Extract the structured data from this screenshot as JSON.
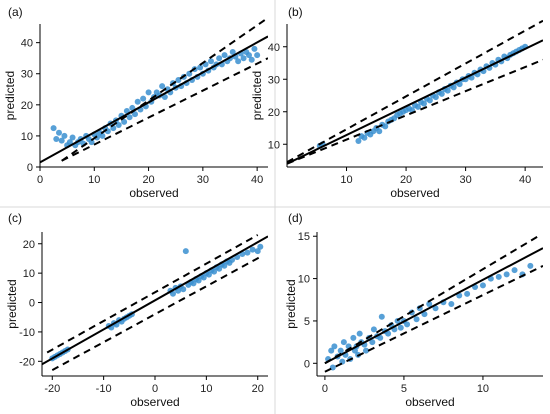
{
  "figure": {
    "background": "#ffffff",
    "divider_color": "#d9d9d9",
    "point_color": "#3a8fd0",
    "line_color": "#000000"
  },
  "chart_data": [
    {
      "type": "scatter",
      "panel_label": "(a)",
      "xlabel": "observed",
      "ylabel": "predicted",
      "xlim": [
        0,
        42
      ],
      "ylim": [
        0,
        46
      ],
      "xticks": [
        0,
        10,
        20,
        30,
        40
      ],
      "yticks": [
        0,
        10,
        20,
        30,
        40
      ],
      "fit_line": [
        [
          0,
          1.5
        ],
        [
          42,
          42
        ]
      ],
      "band_upper": [
        [
          4,
          2
        ],
        [
          42,
          48
        ]
      ],
      "band_lower": [
        [
          4,
          2
        ],
        [
          42,
          35
        ]
      ],
      "points": [
        [
          2.5,
          12.5
        ],
        [
          3,
          9
        ],
        [
          3.5,
          11
        ],
        [
          4,
          8.5
        ],
        [
          4.5,
          10
        ],
        [
          5,
          7
        ],
        [
          5.5,
          8
        ],
        [
          6,
          9.5
        ],
        [
          6.5,
          7
        ],
        [
          7,
          8
        ],
        [
          7.5,
          9
        ],
        [
          8,
          7.5
        ],
        [
          8.5,
          10
        ],
        [
          9,
          9
        ],
        [
          9.5,
          8
        ],
        [
          10,
          10.5
        ],
        [
          10.5,
          9.5
        ],
        [
          11,
          11
        ],
        [
          11.5,
          10
        ],
        [
          12,
          12.5
        ],
        [
          12.5,
          11.5
        ],
        [
          13,
          14
        ],
        [
          13.5,
          12.5
        ],
        [
          14,
          15
        ],
        [
          14.5,
          13.5
        ],
        [
          15,
          16.5
        ],
        [
          15.5,
          14.5
        ],
        [
          16,
          18
        ],
        [
          16.5,
          16
        ],
        [
          17,
          19
        ],
        [
          17.5,
          17
        ],
        [
          18,
          21
        ],
        [
          18.5,
          18.5
        ],
        [
          19,
          22
        ],
        [
          19.5,
          19.5
        ],
        [
          20,
          24
        ],
        [
          20.5,
          21
        ],
        [
          21,
          22.5
        ],
        [
          21.5,
          24
        ],
        [
          22,
          23
        ],
        [
          22.5,
          26
        ],
        [
          23,
          22.5
        ],
        [
          23.5,
          25
        ],
        [
          24,
          24
        ],
        [
          24.5,
          27
        ],
        [
          25,
          25.5
        ],
        [
          25.5,
          28
        ],
        [
          26,
          26
        ],
        [
          26.5,
          29
        ],
        [
          27,
          27
        ],
        [
          27.5,
          30
        ],
        [
          28,
          28
        ],
        [
          28.5,
          31.5
        ],
        [
          29,
          29
        ],
        [
          29.5,
          32
        ],
        [
          30,
          30
        ],
        [
          30.5,
          33
        ],
        [
          31,
          31
        ],
        [
          31.5,
          34
        ],
        [
          32,
          32
        ],
        [
          32.5,
          33
        ],
        [
          33,
          35
        ],
        [
          33.5,
          33
        ],
        [
          34,
          36
        ],
        [
          34.5,
          34
        ],
        [
          35,
          35
        ],
        [
          35.5,
          37
        ],
        [
          36,
          35.5
        ],
        [
          36.5,
          34
        ],
        [
          37,
          36.5
        ],
        [
          37.5,
          35
        ],
        [
          38,
          37
        ],
        [
          38.5,
          36
        ],
        [
          39,
          34.5
        ],
        [
          39.5,
          38
        ],
        [
          40,
          36
        ]
      ]
    },
    {
      "type": "scatter",
      "panel_label": "(b)",
      "xlabel": "observed",
      "ylabel": "predicted",
      "xlim": [
        0,
        43
      ],
      "ylim": [
        3,
        47
      ],
      "xticks": [
        10,
        20,
        30,
        40
      ],
      "yticks": [
        10,
        20,
        30,
        40
      ],
      "fit_line": [
        [
          0,
          4
        ],
        [
          43,
          42
        ]
      ],
      "band_upper": [
        [
          0,
          4.5
        ],
        [
          43,
          48
        ]
      ],
      "band_lower": [
        [
          0,
          4
        ],
        [
          43,
          36
        ]
      ],
      "points": [
        [
          5.5,
          9.5
        ],
        [
          6,
          10
        ],
        [
          12,
          11
        ],
        [
          12.5,
          12.5
        ],
        [
          13,
          12
        ],
        [
          13.5,
          13.5
        ],
        [
          14,
          13
        ],
        [
          14.5,
          14
        ],
        [
          15,
          15
        ],
        [
          15.5,
          14
        ],
        [
          16,
          16
        ],
        [
          16.5,
          15.5
        ],
        [
          17,
          17
        ],
        [
          17.5,
          17.5
        ],
        [
          18,
          18
        ],
        [
          18.5,
          19
        ],
        [
          19,
          19.5
        ],
        [
          19.5,
          20
        ],
        [
          20,
          20.5
        ],
        [
          20.5,
          21
        ],
        [
          21,
          20.5
        ],
        [
          21.5,
          22
        ],
        [
          22,
          21.5
        ],
        [
          22.5,
          23
        ],
        [
          23,
          22.5
        ],
        [
          23.5,
          24
        ],
        [
          24,
          23.5
        ],
        [
          24.5,
          25
        ],
        [
          25,
          24.5
        ],
        [
          25.5,
          26
        ],
        [
          26,
          25.5
        ],
        [
          26.5,
          27
        ],
        [
          27,
          26.5
        ],
        [
          27.5,
          28
        ],
        [
          28,
          27.5
        ],
        [
          28.5,
          29
        ],
        [
          29,
          28.5
        ],
        [
          29.5,
          30
        ],
        [
          30,
          30
        ],
        [
          30.5,
          31
        ],
        [
          31,
          30.5
        ],
        [
          31.5,
          32
        ],
        [
          32,
          31.5
        ],
        [
          32.5,
          33
        ],
        [
          33,
          32.5
        ],
        [
          33.5,
          34
        ],
        [
          34,
          33.5
        ],
        [
          34.5,
          35
        ],
        [
          35,
          34.5
        ],
        [
          35.5,
          36
        ],
        [
          36,
          35.5
        ],
        [
          36.5,
          37
        ],
        [
          37,
          36.5
        ],
        [
          37.5,
          37.5
        ],
        [
          38,
          38
        ],
        [
          38.5,
          38.5
        ],
        [
          39,
          39
        ],
        [
          39.5,
          39.5
        ],
        [
          40,
          40
        ]
      ]
    },
    {
      "type": "scatter",
      "panel_label": "(c)",
      "xlabel": "observed",
      "ylabel": "predicted",
      "xlim": [
        -22,
        22
      ],
      "ylim": [
        -25,
        24
      ],
      "xticks": [
        -20,
        -10,
        0,
        10,
        20
      ],
      "yticks": [
        -20,
        -10,
        0,
        10,
        20
      ],
      "fit_line": [
        [
          -22,
          -21
        ],
        [
          22,
          22.5
        ]
      ],
      "band_upper": [
        [
          -21,
          -17
        ],
        [
          20,
          23
        ]
      ],
      "band_lower": [
        [
          -20,
          -23
        ],
        [
          21,
          16
        ]
      ],
      "points": [
        [
          -20,
          -19
        ],
        [
          -19.5,
          -18.5
        ],
        [
          -19,
          -18
        ],
        [
          -18.5,
          -17.5
        ],
        [
          -18,
          -17
        ],
        [
          -17.5,
          -16.5
        ],
        [
          -17,
          -16
        ],
        [
          -9,
          -8
        ],
        [
          -8.5,
          -8.5
        ],
        [
          -8,
          -7
        ],
        [
          -7.5,
          -7.5
        ],
        [
          -7,
          -6
        ],
        [
          -6.5,
          -6.5
        ],
        [
          -6,
          -5.5
        ],
        [
          -5.5,
          -5
        ],
        [
          -5,
          -4.5
        ],
        [
          -4.5,
          -4
        ],
        [
          3,
          4
        ],
        [
          3.5,
          3
        ],
        [
          4,
          5
        ],
        [
          4.5,
          4
        ],
        [
          5,
          5.5
        ],
        [
          5.5,
          4.5
        ],
        [
          6,
          17.5
        ],
        [
          6.5,
          6
        ],
        [
          7,
          7
        ],
        [
          7.5,
          6.5
        ],
        [
          8,
          8
        ],
        [
          8.5,
          7.5
        ],
        [
          9,
          9
        ],
        [
          9.5,
          8.5
        ],
        [
          10,
          10
        ],
        [
          10.5,
          9.5
        ],
        [
          11,
          11
        ],
        [
          11.5,
          10.5
        ],
        [
          12,
          12
        ],
        [
          12.5,
          11.5
        ],
        [
          13,
          13
        ],
        [
          13.5,
          12.5
        ],
        [
          14,
          14
        ],
        [
          14.5,
          13.5
        ],
        [
          15,
          14.5
        ],
        [
          16,
          15.5
        ],
        [
          17,
          16.5
        ],
        [
          18,
          17
        ],
        [
          19,
          18
        ],
        [
          20,
          17.5
        ],
        [
          20.5,
          19
        ]
      ]
    },
    {
      "type": "scatter",
      "panel_label": "(d)",
      "xlabel": "observed",
      "ylabel": "predicted",
      "xlim": [
        -0.5,
        13.8
      ],
      "ylim": [
        -1.5,
        15.5
      ],
      "xticks": [
        0,
        5,
        10
      ],
      "yticks": [
        0,
        5,
        10,
        15
      ],
      "fit_line": [
        [
          0,
          0
        ],
        [
          13.8,
          13.6
        ]
      ],
      "band_upper": [
        [
          0,
          0
        ],
        [
          13.5,
          15
        ]
      ],
      "band_lower": [
        [
          0,
          -1
        ],
        [
          13.8,
          11.5
        ]
      ],
      "points": [
        [
          0.2,
          0.5
        ],
        [
          0.4,
          1.5
        ],
        [
          0.5,
          -0.5
        ],
        [
          0.6,
          2
        ],
        [
          0.8,
          0.8
        ],
        [
          1,
          1.5
        ],
        [
          1.1,
          0.2
        ],
        [
          1.2,
          2.5
        ],
        [
          1.3,
          1
        ],
        [
          1.5,
          2
        ],
        [
          1.6,
          0.5
        ],
        [
          1.8,
          3
        ],
        [
          1.9,
          1.5
        ],
        [
          2,
          2
        ],
        [
          2.1,
          1
        ],
        [
          2.2,
          3.5
        ],
        [
          2.3,
          2.5
        ],
        [
          2.5,
          2.2
        ],
        [
          2.6,
          1.5
        ],
        [
          2.8,
          3
        ],
        [
          3,
          2.5
        ],
        [
          3.1,
          4
        ],
        [
          3.3,
          3.2
        ],
        [
          3.5,
          3
        ],
        [
          3.6,
          5.5
        ],
        [
          3.8,
          3.8
        ],
        [
          4,
          3.5
        ],
        [
          4.2,
          4.5
        ],
        [
          4.4,
          4
        ],
        [
          4.6,
          5
        ],
        [
          4.8,
          4.2
        ],
        [
          5,
          5
        ],
        [
          5.2,
          4.6
        ],
        [
          5.5,
          6
        ],
        [
          5.8,
          5.2
        ],
        [
          6,
          6.5
        ],
        [
          6.3,
          5.8
        ],
        [
          6.6,
          7
        ],
        [
          7,
          6.5
        ],
        [
          7.5,
          7.2
        ],
        [
          8,
          7
        ],
        [
          8.5,
          8
        ],
        [
          9,
          8.2
        ],
        [
          9.5,
          9
        ],
        [
          10,
          9.2
        ],
        [
          10.5,
          10
        ],
        [
          11,
          10.2
        ],
        [
          11.5,
          10.5
        ],
        [
          12,
          11
        ],
        [
          12.5,
          10.5
        ],
        [
          13,
          11.5
        ]
      ]
    }
  ]
}
